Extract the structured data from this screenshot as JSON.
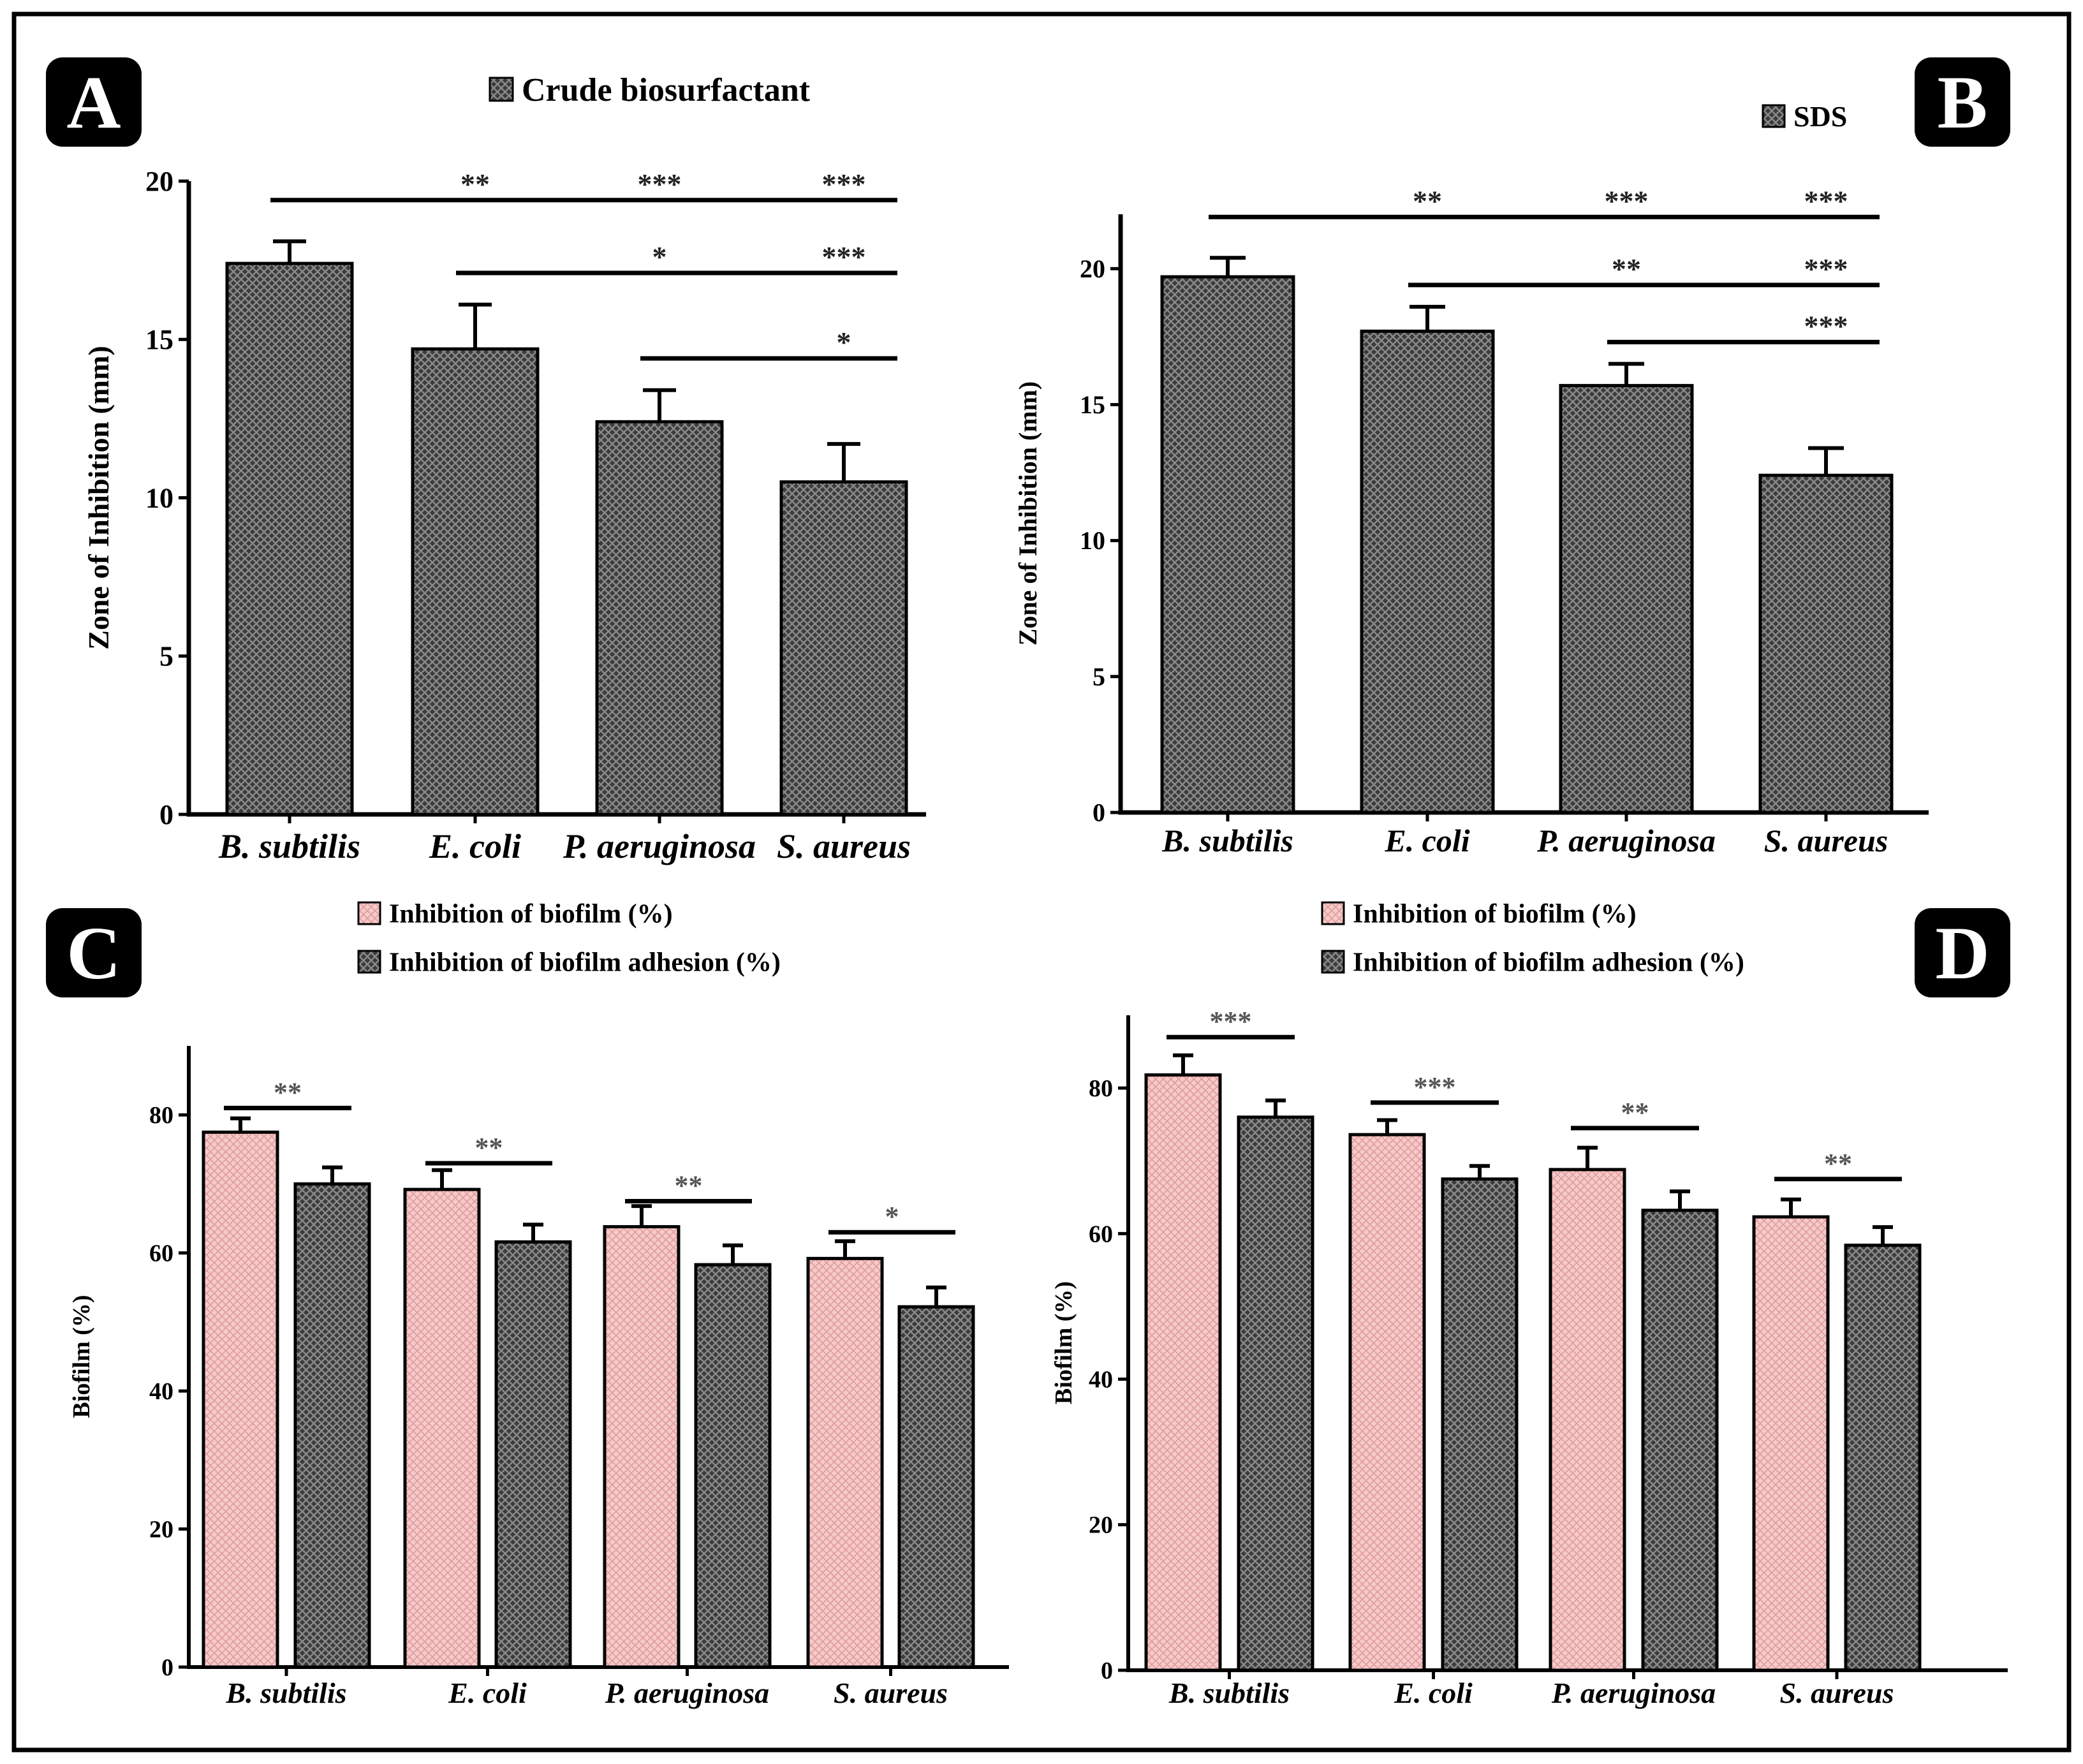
{
  "colors": {
    "dark_bar": "#3c3c3c",
    "dark_bar_pattern": "#8a8a8a",
    "pink_bar": "#f5caca",
    "pink_bar_pattern": "#e29a9a",
    "ink": "#000000",
    "badge_bg": "#000000",
    "badge_text": "#ffffff"
  },
  "chart_data": [
    {
      "panel": "A",
      "type": "bar",
      "legend": [
        "Crude biosurfactant"
      ],
      "categories": [
        "B. subtilis",
        "E. coli",
        "P. aeruginosa",
        "S. aureus"
      ],
      "series": [
        {
          "name": "Crude biosurfactant",
          "values": [
            17.4,
            14.7,
            12.4,
            10.5
          ],
          "errors": [
            0.7,
            1.4,
            1.0,
            1.2
          ]
        }
      ],
      "ylabel": "Zone of Inhibition (mm)",
      "xlabel": "",
      "ylim": [
        0,
        20
      ],
      "yticks": [
        0,
        5,
        10,
        15,
        20
      ],
      "significance": [
        {
          "y": 19.4,
          "from": 0,
          "to": 3,
          "labels": [
            {
              "at": 1,
              "text": "**"
            },
            {
              "at": 2,
              "text": "***"
            },
            {
              "at": 3,
              "text": "***"
            }
          ]
        },
        {
          "y": 17.1,
          "from": 1,
          "to": 3,
          "labels": [
            {
              "at": 2,
              "text": "*"
            },
            {
              "at": 3,
              "text": "***"
            }
          ]
        },
        {
          "y": 14.4,
          "from": 2,
          "to": 3,
          "labels": [
            {
              "at": 3,
              "text": "*"
            }
          ]
        }
      ]
    },
    {
      "panel": "B",
      "type": "bar",
      "legend": [
        "SDS"
      ],
      "categories": [
        "B. subtilis",
        "E. coli",
        "P. aeruginosa",
        "S. aureus"
      ],
      "series": [
        {
          "name": "SDS",
          "values": [
            19.7,
            17.7,
            15.7,
            12.4
          ],
          "errors": [
            0.7,
            0.9,
            0.8,
            1.0
          ]
        }
      ],
      "ylabel": "Zone of Inhibition (mm)",
      "xlabel": "",
      "ylim": [
        0,
        22
      ],
      "yticks": [
        0,
        5,
        10,
        15,
        20
      ],
      "significance": [
        {
          "y": 21.9,
          "from": 0,
          "to": 3,
          "labels": [
            {
              "at": 1,
              "text": "**"
            },
            {
              "at": 2,
              "text": "***"
            },
            {
              "at": 3,
              "text": "***"
            }
          ]
        },
        {
          "y": 19.4,
          "from": 1,
          "to": 3,
          "labels": [
            {
              "at": 2,
              "text": "**"
            },
            {
              "at": 3,
              "text": "***"
            }
          ]
        },
        {
          "y": 17.3,
          "from": 2,
          "to": 3,
          "labels": [
            {
              "at": 3,
              "text": "***"
            }
          ]
        }
      ]
    },
    {
      "panel": "C",
      "type": "bar",
      "legend": [
        "Inhibition of biofilm (%)",
        "Inhibition of biofilm adhesion (%)"
      ],
      "categories": [
        "B. subtilis",
        "E. coli",
        "P. aeruginosa",
        "S. aureus"
      ],
      "series": [
        {
          "name": "Inhibition of biofilm (%)",
          "values": [
            77.5,
            69.2,
            63.8,
            59.2
          ],
          "errors": [
            2.0,
            2.8,
            3.0,
            2.5
          ]
        },
        {
          "name": "Inhibition of biofilm adhesion (%)",
          "values": [
            70.0,
            61.6,
            58.3,
            52.2
          ],
          "errors": [
            2.4,
            2.5,
            2.8,
            2.8
          ]
        }
      ],
      "ylabel": "Biofilm (%)",
      "xlabel": "",
      "ylim": [
        0,
        90
      ],
      "yticks": [
        0,
        20,
        40,
        60,
        80
      ],
      "significance": [
        {
          "y": 81.0,
          "group": 0,
          "text": "**"
        },
        {
          "y": 73.0,
          "group": 1,
          "text": "**"
        },
        {
          "y": 67.5,
          "group": 2,
          "text": "**"
        },
        {
          "y": 63.0,
          "group": 3,
          "text": "*"
        }
      ]
    },
    {
      "panel": "D",
      "type": "bar",
      "legend": [
        "Inhibition of biofilm (%)",
        "Inhibition of biofilm adhesion (%)"
      ],
      "categories": [
        "B. subtilis",
        "E. coli",
        "P. aeruginosa",
        "S. aureus"
      ],
      "series": [
        {
          "name": "Inhibition of biofilm (%)",
          "values": [
            81.8,
            73.6,
            68.8,
            62.3
          ],
          "errors": [
            2.7,
            2.0,
            3.0,
            2.4
          ]
        },
        {
          "name": "Inhibition of biofilm adhesion (%)",
          "values": [
            76.0,
            67.5,
            63.2,
            58.4
          ],
          "errors": [
            2.3,
            1.8,
            2.6,
            2.5
          ]
        }
      ],
      "ylabel": "Biofilm (%)",
      "xlabel": "",
      "ylim": [
        0,
        90
      ],
      "yticks": [
        0,
        20,
        40,
        60,
        80
      ],
      "significance": [
        {
          "y": 87.0,
          "group": 0,
          "text": "***"
        },
        {
          "y": 78.0,
          "group": 1,
          "text": "***"
        },
        {
          "y": 74.5,
          "group": 2,
          "text": "**"
        },
        {
          "y": 67.5,
          "group": 3,
          "text": "**"
        }
      ]
    }
  ]
}
